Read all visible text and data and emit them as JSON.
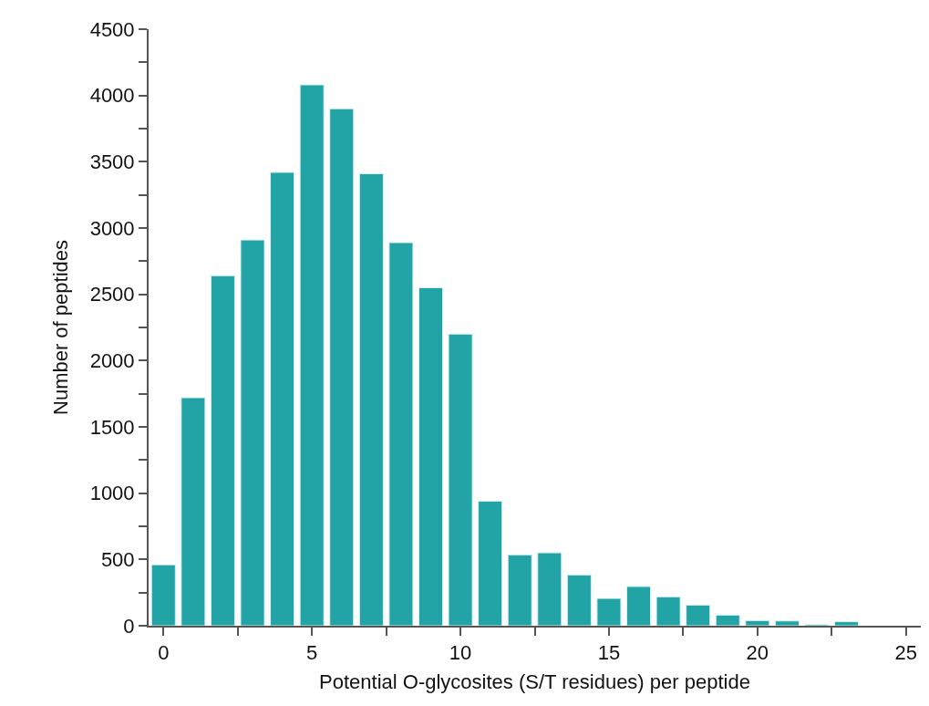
{
  "chart_data": {
    "type": "bar",
    "xlabel": "Potential O-glycosites (S/T residues) per peptide",
    "ylabel": "Number of peptides",
    "x": [
      0,
      1,
      2,
      3,
      4,
      5,
      6,
      7,
      8,
      9,
      10,
      11,
      12,
      13,
      14,
      15,
      16,
      17,
      18,
      19,
      20,
      21,
      22,
      23
    ],
    "values": [
      460,
      1720,
      2640,
      2910,
      3420,
      4080,
      3900,
      3410,
      2890,
      2550,
      2200,
      940,
      535,
      550,
      383,
      206,
      296,
      218,
      156,
      80,
      39,
      36,
      8,
      30
    ],
    "color": "#22a3a6",
    "xlim": [
      -0.5,
      25.5
    ],
    "xticks": [
      0,
      {
        "value": 2.5,
        "label": null
      },
      5,
      {
        "value": 7.5,
        "label": null
      },
      10,
      {
        "value": 12.5,
        "label": null
      },
      15,
      {
        "value": 17.5,
        "label": null
      },
      20,
      {
        "value": 22.5,
        "label": null
      },
      25
    ],
    "ylim": [
      0,
      4500
    ],
    "yticks": [
      0,
      {
        "value": 250,
        "label": null
      },
      500,
      {
        "value": 750,
        "label": null
      },
      1000,
      {
        "value": 1250,
        "label": null
      },
      1500,
      {
        "value": 1750,
        "label": null
      },
      2000,
      {
        "value": 2250,
        "label": null
      },
      2500,
      {
        "value": 2750,
        "label": null
      },
      3000,
      {
        "value": 3250,
        "label": null
      },
      3500,
      {
        "value": 3750,
        "label": null
      },
      4000,
      {
        "value": 4250,
        "label": null
      },
      4500
    ],
    "grid": false
  }
}
